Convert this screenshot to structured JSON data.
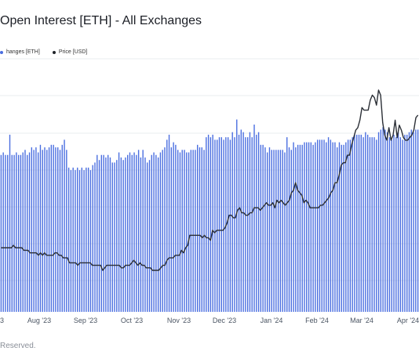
{
  "title": "Open Interest [ETH] - All Exchanges",
  "legend": [
    {
      "label": "hanges [ETH]",
      "color": "#4a6ee0"
    },
    {
      "label": "Price [USD]",
      "color": "#1f2328"
    }
  ],
  "footer": "Reserved.",
  "colors": {
    "bars": "#4a6ee0",
    "price_line": "#2b2f36",
    "grid": "#eaecef",
    "axis_text": "#4b5563"
  },
  "chart_data": {
    "type": "bar",
    "x_ticks": [
      "3",
      "Aug '23",
      "Sep '23",
      "Oct '23",
      "Nov '23",
      "Dec '23",
      "Jan '24",
      "Feb '24",
      "Mar '24",
      "Apr '24"
    ],
    "series": [
      {
        "name": "Open Interest [ETH]",
        "type": "bar",
        "values": [
          0.62,
          0.63,
          0.62,
          0.62,
          0.7,
          0.62,
          0.62,
          0.63,
          0.62,
          0.62,
          0.63,
          0.64,
          0.62,
          0.63,
          0.65,
          0.64,
          0.65,
          0.63,
          0.66,
          0.64,
          0.65,
          0.64,
          0.65,
          0.66,
          0.66,
          0.65,
          0.65,
          0.64,
          0.66,
          0.68,
          0.64,
          0.57,
          0.56,
          0.57,
          0.56,
          0.57,
          0.56,
          0.57,
          0.56,
          0.57,
          0.57,
          0.56,
          0.58,
          0.59,
          0.62,
          0.6,
          0.62,
          0.62,
          0.61,
          0.62,
          0.61,
          0.59,
          0.59,
          0.6,
          0.63,
          0.61,
          0.6,
          0.61,
          0.62,
          0.63,
          0.62,
          0.63,
          0.62,
          0.64,
          0.61,
          0.64,
          0.61,
          0.59,
          0.6,
          0.62,
          0.63,
          0.62,
          0.61,
          0.63,
          0.64,
          0.65,
          0.68,
          0.7,
          0.65,
          0.67,
          0.66,
          0.64,
          0.63,
          0.64,
          0.64,
          0.63,
          0.63,
          0.64,
          0.64,
          0.64,
          0.66,
          0.65,
          0.65,
          0.64,
          0.69,
          0.7,
          0.69,
          0.7,
          0.68,
          0.68,
          0.69,
          0.69,
          0.68,
          0.69,
          0.69,
          0.68,
          0.71,
          0.69,
          0.76,
          0.7,
          0.72,
          0.71,
          0.69,
          0.69,
          0.71,
          0.69,
          0.74,
          0.7,
          0.71,
          0.66,
          0.66,
          0.65,
          0.63,
          0.65,
          0.64,
          0.64,
          0.64,
          0.64,
          0.64,
          0.64,
          0.63,
          0.69,
          0.65,
          0.64,
          0.67,
          0.65,
          0.66,
          0.66,
          0.66,
          0.67,
          0.67,
          0.67,
          0.67,
          0.66,
          0.67,
          0.68,
          0.68,
          0.68,
          0.68,
          0.67,
          0.69,
          0.68,
          0.67,
          0.67,
          0.65,
          0.67,
          0.66,
          0.66,
          0.67,
          0.68,
          0.68,
          0.69,
          0.7,
          0.7,
          0.7,
          0.7,
          0.69,
          0.71,
          0.7,
          0.69,
          0.69,
          0.69,
          0.68,
          0.71,
          0.72,
          0.73,
          0.72,
          0.71,
          0.69,
          0.68,
          0.7,
          0.69,
          0.71,
          0.69,
          0.68,
          0.7,
          0.7,
          0.71,
          0.72,
          0.71,
          0.72,
          0.72
        ]
      },
      {
        "name": "Price [USD]",
        "type": "line",
        "values": [
          0.37,
          0.37,
          0.37,
          0.37,
          0.37,
          0.37,
          0.38,
          0.37,
          0.37,
          0.37,
          0.37,
          0.36,
          0.36,
          0.36,
          0.35,
          0.35,
          0.35,
          0.35,
          0.34,
          0.35,
          0.34,
          0.35,
          0.34,
          0.34,
          0.34,
          0.34,
          0.35,
          0.35,
          0.34,
          0.34,
          0.33,
          0.33,
          0.33,
          0.31,
          0.31,
          0.31,
          0.31,
          0.3,
          0.31,
          0.31,
          0.31,
          0.31,
          0.31,
          0.31,
          0.3,
          0.3,
          0.3,
          0.3,
          0.3,
          0.28,
          0.29,
          0.3,
          0.3,
          0.3,
          0.3,
          0.3,
          0.3,
          0.3,
          0.29,
          0.29,
          0.3,
          0.3,
          0.3,
          0.31,
          0.32,
          0.31,
          0.3,
          0.31,
          0.3,
          0.3,
          0.29,
          0.29,
          0.29,
          0.28,
          0.28,
          0.28,
          0.28,
          0.29,
          0.3,
          0.3,
          0.32,
          0.33,
          0.33,
          0.33,
          0.34,
          0.34,
          0.34,
          0.36,
          0.35,
          0.37,
          0.38,
          0.42,
          0.42,
          0.42,
          0.42,
          0.42,
          0.42,
          0.41,
          0.42,
          0.41,
          0.41,
          0.4,
          0.44,
          0.43,
          0.44,
          0.44,
          0.44,
          0.44,
          0.45,
          0.47,
          0.5,
          0.5,
          0.49,
          0.49,
          0.52,
          0.53,
          0.51,
          0.51,
          0.5,
          0.5,
          0.51,
          0.51,
          0.53,
          0.53,
          0.53,
          0.52,
          0.53,
          0.54,
          0.55,
          0.54,
          0.54,
          0.55,
          0.53,
          0.56,
          0.55,
          0.56,
          0.55,
          0.54,
          0.55,
          0.56,
          0.59,
          0.6,
          0.63,
          0.6,
          0.59,
          0.58,
          0.55,
          0.56,
          0.55,
          0.53,
          0.53,
          0.53,
          0.53,
          0.53,
          0.54,
          0.54,
          0.55,
          0.56,
          0.57,
          0.59,
          0.6,
          0.63,
          0.63,
          0.66,
          0.7,
          0.71,
          0.71,
          0.74,
          0.74,
          0.78,
          0.81,
          0.84,
          0.85,
          0.88,
          0.93,
          0.92,
          0.92,
          0.92,
          0.96,
          0.98,
          0.97,
          0.94,
          1.0,
          0.98,
          0.87,
          0.82,
          0.8,
          0.85,
          0.8,
          0.82,
          0.88,
          0.81,
          0.86,
          0.84,
          0.81,
          0.8,
          0.8,
          0.81,
          0.82,
          0.84,
          0.89,
          0.9
        ]
      }
    ],
    "grid": true,
    "legend_position": "top-left"
  }
}
